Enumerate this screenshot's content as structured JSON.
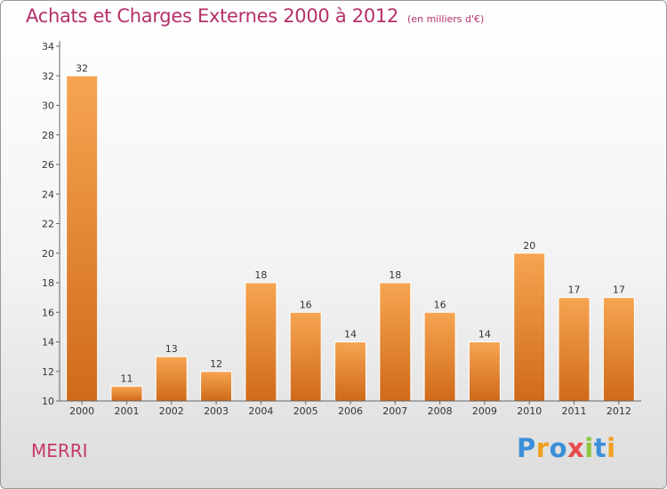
{
  "chart_data": {
    "type": "bar",
    "title": "Achats et Charges Externes 2000 à 2012",
    "unit": "(en milliers d'€)",
    "xlabel": "",
    "ylabel": "",
    "categories": [
      "2000",
      "2001",
      "2002",
      "2003",
      "2004",
      "2005",
      "2006",
      "2007",
      "2008",
      "2009",
      "2010",
      "2011",
      "2012"
    ],
    "values": [
      32,
      11,
      13,
      12,
      18,
      16,
      14,
      18,
      16,
      14,
      20,
      17,
      17
    ],
    "ylim": [
      10,
      34
    ],
    "yticks": [
      10,
      12,
      14,
      16,
      18,
      20,
      22,
      24,
      26,
      28,
      30,
      32,
      34
    ],
    "grid": false,
    "legend": "none",
    "colors": {
      "bar_light": "#f6a552",
      "bar_dark": "#cf6a1a",
      "title": "#b5306a"
    }
  },
  "commune": "MERRI",
  "logo": {
    "text": "Proxiti",
    "letters": [
      {
        "char": "P",
        "color": "#3b8fd8"
      },
      {
        "char": "r",
        "color": "#f0a020"
      },
      {
        "char": "o",
        "color": "#3b8fd8"
      },
      {
        "char": "x",
        "color": "#e84a4a"
      },
      {
        "char": "i",
        "color": "#8cc63e"
      },
      {
        "char": "t",
        "color": "#3b8fd8"
      },
      {
        "char": "i",
        "color": "#f0a020"
      }
    ]
  }
}
